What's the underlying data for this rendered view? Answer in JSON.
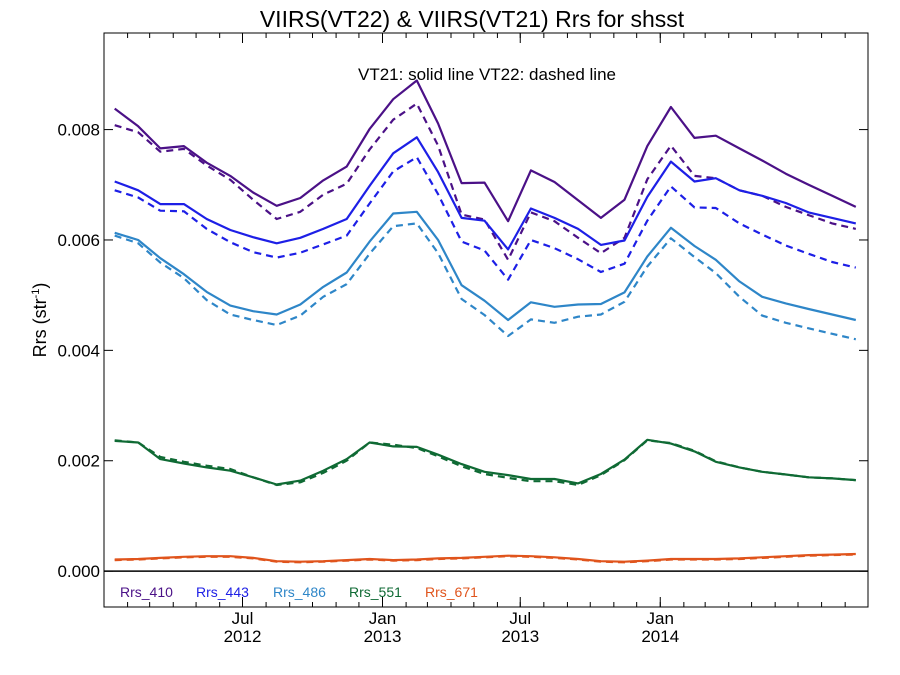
{
  "chart_data": {
    "type": "line",
    "title": "VIIRS(VT22) & VIIRS(VT21)  Rrs for shsst",
    "subtitle": "VT21: solid line   VT22: dashed line",
    "ylabel_main": "Rrs (str",
    "ylabel_sup": "-1",
    "ylabel_close": ")",
    "xlabel": "",
    "ylim": [
      -0.00065,
      0.00975
    ],
    "x_range": [
      "2012-01-01",
      "2014-10-01"
    ],
    "grid": false,
    "legend_position": "bottom-left",
    "y_ticks": [
      {
        "value": 0.0,
        "label": "0.000"
      },
      {
        "value": 0.002,
        "label": "0.002"
      },
      {
        "value": 0.004,
        "label": "0.004"
      },
      {
        "value": 0.006,
        "label": "0.006"
      },
      {
        "value": 0.008,
        "label": "0.008"
      }
    ],
    "x_ticks": [
      {
        "date": "2012-07-01",
        "month": "Jul",
        "year": "2012"
      },
      {
        "date": "2013-01-01",
        "month": "Jan",
        "year": "2013"
      },
      {
        "date": "2013-07-01",
        "month": "Jul",
        "year": "2013"
      },
      {
        "date": "2014-01-01",
        "month": "Jan",
        "year": "2014"
      }
    ],
    "zero_line": 0.0,
    "x": [
      "2012-01-15",
      "2012-02-15",
      "2012-03-15",
      "2012-04-15",
      "2012-05-15",
      "2012-06-15",
      "2012-07-15",
      "2012-08-15",
      "2012-09-15",
      "2012-10-15",
      "2012-11-15",
      "2012-12-15",
      "2013-01-15",
      "2013-02-15",
      "2013-03-15",
      "2013-04-15",
      "2013-05-15",
      "2013-06-15",
      "2013-07-15",
      "2013-08-15",
      "2013-09-15",
      "2013-10-15",
      "2013-11-15",
      "2013-12-15",
      "2014-01-15",
      "2014-02-15",
      "2014-03-15",
      "2014-04-15",
      "2014-05-15",
      "2014-06-15",
      "2014-07-15",
      "2014-08-15",
      "2014-09-15"
    ],
    "series": [
      {
        "name": "Rrs_410",
        "color": "#4b1187",
        "style": "solid",
        "values": [
          0.00838,
          0.00806,
          0.00766,
          0.0077,
          0.0074,
          0.00716,
          0.00686,
          0.00662,
          0.00676,
          0.00708,
          0.00733,
          0.00801,
          0.00855,
          0.00889,
          0.00811,
          0.00703,
          0.00704,
          0.00634,
          0.00726,
          0.00705,
          0.00672,
          0.0064,
          0.00673,
          0.0077,
          0.00841,
          0.00785,
          0.00789,
          0.00766,
          0.00744,
          0.0072,
          0.007,
          0.0068,
          0.0066
        ]
      },
      {
        "name": "Rrs_410",
        "color": "#4b1187",
        "style": "dashed",
        "values": [
          0.00808,
          0.00795,
          0.0076,
          0.00765,
          0.00735,
          0.00709,
          0.00673,
          0.00638,
          0.00651,
          0.00682,
          0.00702,
          0.00764,
          0.00818,
          0.00847,
          0.00771,
          0.00646,
          0.00637,
          0.00564,
          0.0065,
          0.00634,
          0.00604,
          0.00576,
          0.00604,
          0.0071,
          0.00771,
          0.00716,
          0.00712,
          0.0069,
          0.0068,
          0.0066,
          0.00645,
          0.0063,
          0.0062
        ]
      },
      {
        "name": "Rrs_443",
        "color": "#1d1fe6",
        "style": "solid",
        "values": [
          0.00706,
          0.0069,
          0.00665,
          0.00665,
          0.00638,
          0.00618,
          0.00605,
          0.00594,
          0.00604,
          0.0062,
          0.00638,
          0.00698,
          0.00757,
          0.00786,
          0.00723,
          0.0064,
          0.00635,
          0.00583,
          0.00657,
          0.0064,
          0.0062,
          0.00591,
          0.00599,
          0.00678,
          0.00742,
          0.00706,
          0.00712,
          0.0069,
          0.0068,
          0.00667,
          0.0065,
          0.0064,
          0.0063
        ]
      },
      {
        "name": "Rrs_443",
        "color": "#1d1fe6",
        "style": "dashed",
        "values": [
          0.0069,
          0.00677,
          0.00653,
          0.00652,
          0.0062,
          0.00596,
          0.00578,
          0.00568,
          0.00577,
          0.00592,
          0.00608,
          0.00666,
          0.00724,
          0.0075,
          0.00683,
          0.00597,
          0.00581,
          0.00528,
          0.006,
          0.00585,
          0.00565,
          0.00542,
          0.00557,
          0.00635,
          0.00697,
          0.00659,
          0.00658,
          0.0063,
          0.0061,
          0.0059,
          0.00575,
          0.0056,
          0.0055
        ]
      },
      {
        "name": "Rrs_486",
        "color": "#2e86c8",
        "style": "solid",
        "values": [
          0.00613,
          0.006,
          0.00567,
          0.00538,
          0.00506,
          0.00481,
          0.00471,
          0.00465,
          0.00483,
          0.00515,
          0.00541,
          0.00597,
          0.00648,
          0.00651,
          0.006,
          0.00518,
          0.0049,
          0.00455,
          0.00487,
          0.00479,
          0.00483,
          0.00484,
          0.00505,
          0.0057,
          0.00622,
          0.00589,
          0.00564,
          0.00525,
          0.00497,
          0.00485,
          0.00475,
          0.00465,
          0.00455
        ]
      },
      {
        "name": "Rrs_486",
        "color": "#2e86c8",
        "style": "dashed",
        "values": [
          0.00608,
          0.00594,
          0.00559,
          0.00531,
          0.00491,
          0.00465,
          0.00455,
          0.00446,
          0.00463,
          0.00497,
          0.0052,
          0.00575,
          0.00625,
          0.0063,
          0.00576,
          0.00493,
          0.00464,
          0.00426,
          0.00456,
          0.0045,
          0.00461,
          0.00465,
          0.00488,
          0.00552,
          0.00603,
          0.00569,
          0.0054,
          0.00497,
          0.00463,
          0.0045,
          0.0044,
          0.0043,
          0.0042
        ]
      },
      {
        "name": "Rrs_551",
        "color": "#0f6a34",
        "style": "solid",
        "values": [
          0.00236,
          0.00233,
          0.00203,
          0.00195,
          0.00188,
          0.00182,
          0.0017,
          0.00157,
          0.00164,
          0.00182,
          0.00203,
          0.00233,
          0.00226,
          0.00225,
          0.00211,
          0.00194,
          0.0018,
          0.00174,
          0.00167,
          0.00167,
          0.00159,
          0.00176,
          0.00202,
          0.00238,
          0.00231,
          0.00217,
          0.00198,
          0.00188,
          0.0018,
          0.00175,
          0.0017,
          0.00168,
          0.00165
        ]
      },
      {
        "name": "Rrs_551",
        "color": "#0f6a34",
        "style": "dashed",
        "values": [
          0.00237,
          0.00233,
          0.00207,
          0.00198,
          0.00191,
          0.00185,
          0.0017,
          0.00156,
          0.00161,
          0.00178,
          0.002,
          0.00233,
          0.00229,
          0.00223,
          0.00208,
          0.0019,
          0.00176,
          0.00169,
          0.00163,
          0.00163,
          0.00156,
          0.00174,
          0.00201,
          0.00237,
          0.00232,
          0.00218,
          0.00199,
          0.00188,
          0.0018,
          0.00175,
          0.0017,
          0.00168,
          0.00165
        ]
      },
      {
        "name": "Rrs_671",
        "color": "#e0541c",
        "style": "solid",
        "values": [
          0.00021,
          0.00022,
          0.00024,
          0.00026,
          0.00027,
          0.00027,
          0.00024,
          0.00018,
          0.00017,
          0.00018,
          0.0002,
          0.00022,
          0.0002,
          0.00021,
          0.00023,
          0.00024,
          0.00026,
          0.00028,
          0.00027,
          0.00025,
          0.00022,
          0.00018,
          0.00017,
          0.00019,
          0.00022,
          0.00022,
          0.00022,
          0.00023,
          0.00025,
          0.00027,
          0.00029,
          0.0003,
          0.00031
        ]
      },
      {
        "name": "Rrs_671",
        "color": "#e0541c",
        "style": "dashed",
        "values": [
          0.0002,
          0.00021,
          0.00023,
          0.00025,
          0.00026,
          0.00026,
          0.00023,
          0.00017,
          0.00016,
          0.00017,
          0.00019,
          0.00021,
          0.00019,
          0.0002,
          0.00022,
          0.00023,
          0.00025,
          0.00027,
          0.00026,
          0.00024,
          0.00021,
          0.00017,
          0.00016,
          0.00018,
          0.00021,
          0.00021,
          0.00021,
          0.00022,
          0.00024,
          0.00026,
          0.00028,
          0.00029,
          0.0003
        ]
      }
    ],
    "legend": [
      {
        "label": "Rrs_410",
        "color": "#4b1187"
      },
      {
        "label": "Rrs_443",
        "color": "#1d1fe6"
      },
      {
        "label": "Rrs_486",
        "color": "#2e86c8"
      },
      {
        "label": "Rrs_551",
        "color": "#0f6a34"
      },
      {
        "label": "Rrs_671",
        "color": "#e0541c"
      }
    ]
  }
}
